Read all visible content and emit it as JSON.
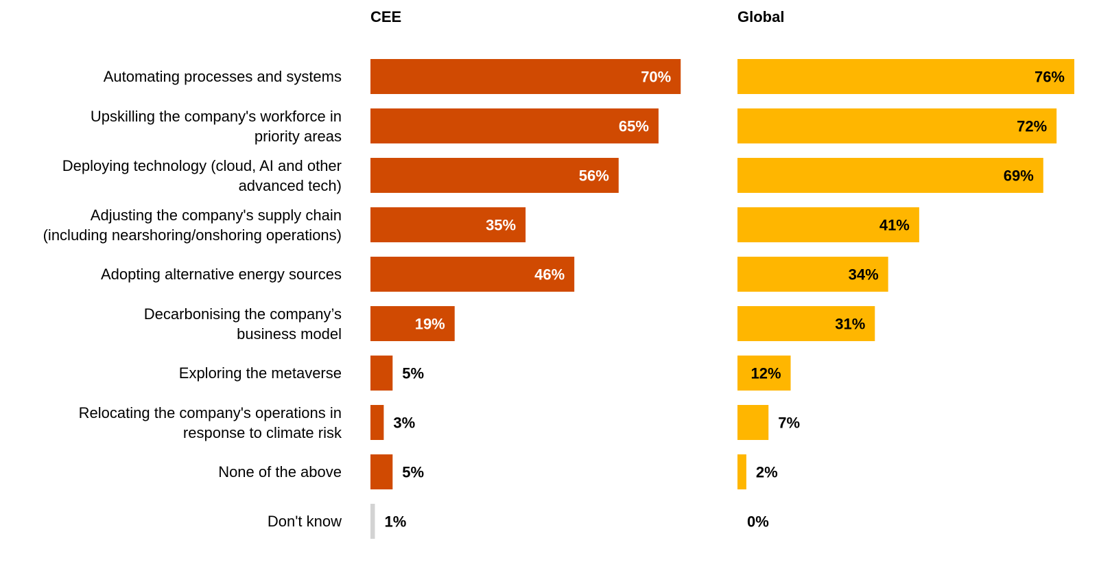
{
  "chart_data": {
    "type": "bar",
    "orientation": "horizontal",
    "categories": [
      "Automating processes and systems",
      "Upskilling the company's workforce in priority areas",
      "Deploying technology (cloud, AI and other advanced tech)",
      "Adjusting the company's supply chain (including nearshoring/onshoring operations)",
      "Adopting alternative energy sources",
      "Decarbonising the company’s business model",
      "Exploring the metaverse",
      "Relocating the company's operations in response to climate risk",
      "None of the above",
      "Don't know"
    ],
    "category_lines": [
      [
        "Automating processes and systems"
      ],
      [
        "Upskilling the company's workforce in",
        "priority areas"
      ],
      [
        "Deploying technology (cloud, AI and other",
        "advanced tech)"
      ],
      [
        "Adjusting the company's supply chain",
        "(including nearshoring/onshoring operations)"
      ],
      [
        "Adopting alternative energy sources"
      ],
      [
        "Decarbonising the company’s",
        "business model"
      ],
      [
        "Exploring the metaverse"
      ],
      [
        "Relocating the company's operations in",
        "response to climate risk"
      ],
      [
        "None of the above"
      ],
      [
        "Don't know"
      ]
    ],
    "series": [
      {
        "name": "CEE",
        "color": "#D04A02",
        "label_color_inside": "#ffffff",
        "values": [
          70,
          65,
          56,
          35,
          46,
          19,
          5,
          3,
          5,
          1
        ],
        "labels": [
          "70%",
          "65%",
          "56%",
          "35%",
          "46%",
          "19%",
          "5%",
          "3%",
          "5%",
          "1%"
        ]
      },
      {
        "name": "Global",
        "color": "#FFB600",
        "label_color_inside": "#000000",
        "values": [
          76,
          72,
          69,
          41,
          34,
          31,
          12,
          7,
          2,
          0
        ],
        "labels": [
          "76%",
          "72%",
          "69%",
          "41%",
          "34%",
          "31%",
          "12%",
          "7%",
          "2%",
          "0%"
        ]
      }
    ],
    "special_colors": {
      "dont_know_cee": "#D3D3D3"
    },
    "xlim": [
      0,
      76
    ],
    "grid": false,
    "legend": "none"
  }
}
